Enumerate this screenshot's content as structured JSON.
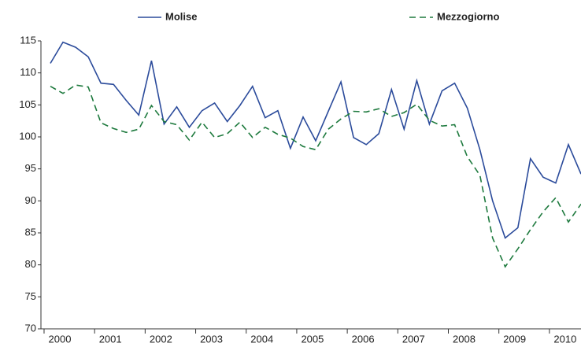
{
  "chart_data": {
    "type": "line",
    "categories": [
      "2000",
      null,
      null,
      null,
      "2001",
      null,
      null,
      null,
      "2002",
      null,
      null,
      null,
      "2003",
      null,
      null,
      null,
      "2004",
      null,
      null,
      null,
      "2005",
      null,
      null,
      null,
      "2006",
      null,
      null,
      null,
      "2007",
      null,
      null,
      null,
      "2008",
      null,
      null,
      null,
      "2009",
      null,
      null,
      null,
      "2010",
      null,
      null
    ],
    "series": [
      {
        "name": "Molise",
        "color": "#2b4b9b",
        "dash": false,
        "values": [
          111.5,
          114.8,
          114,
          112.5,
          108.4,
          108.2,
          105.7,
          103.4,
          111.9,
          102,
          104.7,
          101.5,
          104.1,
          105.3,
          102.4,
          104.9,
          107.9,
          103,
          104.1,
          98.2,
          103.1,
          99.4,
          104,
          108.6,
          99.9,
          98.8,
          100.5,
          107.4,
          101.2,
          108.8,
          102,
          107.2,
          108.4,
          104.5,
          98,
          90,
          84.2,
          85.8,
          96.6,
          93.7,
          92.8,
          98.8,
          94.2
        ]
      },
      {
        "name": "Mezzogiorno",
        "color": "#1e7a3e",
        "dash": true,
        "values": [
          107.9,
          106.8,
          108.1,
          107.8,
          102.2,
          101.3,
          100.7,
          101.2,
          104.9,
          102.4,
          101.9,
          99.5,
          102.3,
          99.9,
          100.5,
          102.3,
          99.9,
          101.5,
          100.4,
          99.8,
          98.5,
          98,
          101.2,
          102.8,
          104,
          103.9,
          104.4,
          103.2,
          103.8,
          105.1,
          102.6,
          101.7,
          101.9,
          96.9,
          94,
          84.2,
          79.7,
          82.5,
          85.5,
          88.3,
          90.5,
          86.7,
          89.5
        ]
      }
    ],
    "ylim": [
      70,
      115
    ],
    "yticks": [
      70,
      75,
      80,
      85,
      90,
      95,
      100,
      105,
      110,
      115
    ],
    "grid": false,
    "legend": "top"
  }
}
